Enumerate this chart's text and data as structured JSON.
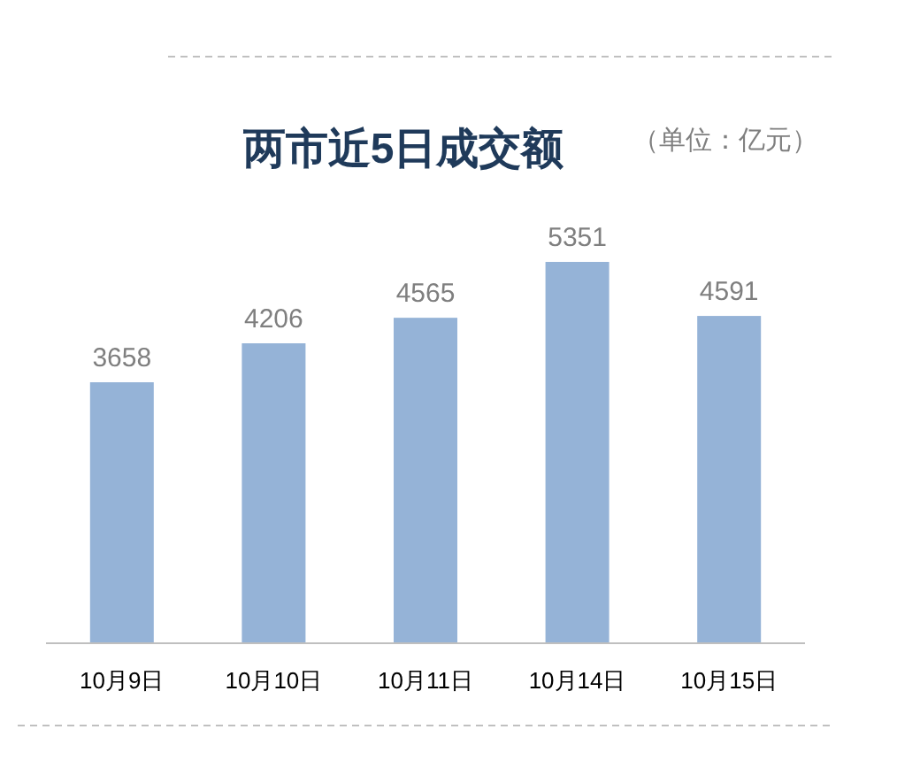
{
  "chart_data": {
    "type": "bar",
    "title": "两市近5日成交额",
    "annotations": [
      "（单位：亿元）"
    ],
    "categories": [
      "10月9日",
      "10月10日",
      "10月11日",
      "10月14日",
      "10月15日"
    ],
    "values": [
      3658,
      4206,
      4565,
      5351,
      4591
    ],
    "color": "#95b3d7",
    "data_labels": true
  }
}
